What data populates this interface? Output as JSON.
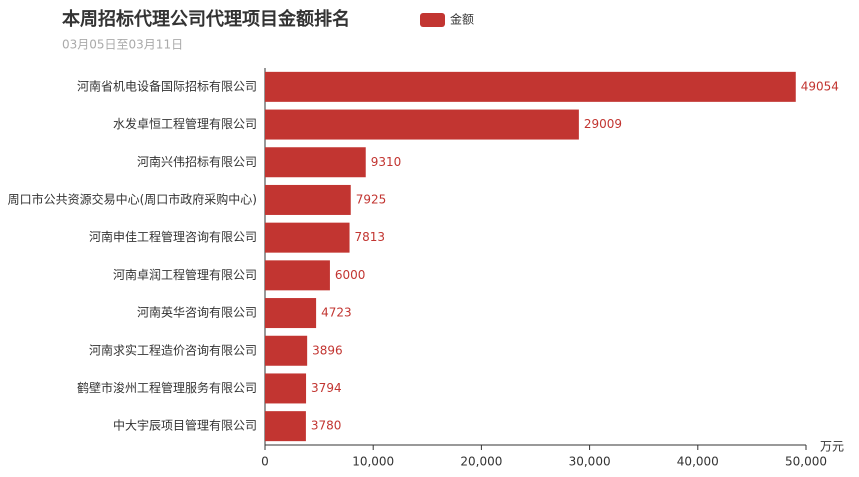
{
  "chart_data": {
    "type": "barh",
    "title": "本周招标代理公司代理项目金额排名",
    "subtitle": "03月05日至03月11日",
    "x_label": "万元",
    "categories": [
      "河南省机电设备国际招标有限公司",
      "水发卓恒工程管理有限公司",
      "河南兴伟招标有限公司",
      "周口市公共资源交易中心(周口市政府采购中心)",
      "河南申佳工程管理咨询有限公司",
      "河南卓润工程管理有限公司",
      "河南英华咨询有限公司",
      "河南求实工程造价咨询有限公司",
      "鹤壁市浚州工程管理服务有限公司",
      "中大宇辰项目管理有限公司"
    ],
    "series": [
      {
        "name": "金额",
        "color": "#c23531",
        "values": [
          49054,
          29009,
          9310,
          7925,
          7813,
          6000,
          4723,
          3896,
          3794,
          3780
        ]
      }
    ],
    "xlim": [
      0,
      50000
    ],
    "xticks": [
      0,
      {
        "value": 10000,
        "label": "10,000"
      },
      {
        "value": 20000,
        "label": "20,000"
      },
      {
        "value": 30000,
        "label": "30,000"
      },
      {
        "value": 40000,
        "label": "40,000"
      },
      {
        "value": 50000,
        "label": "50,000"
      }
    ],
    "grid": false
  }
}
